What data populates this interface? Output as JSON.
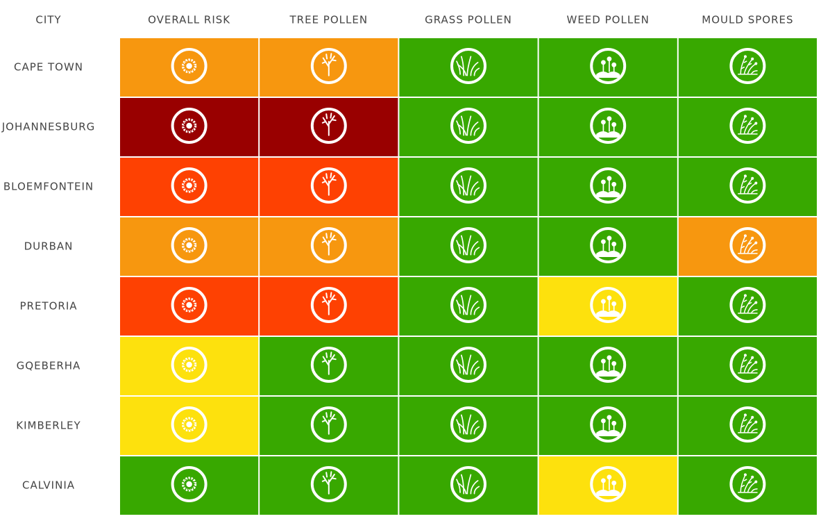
{
  "header": {
    "city": "CITY",
    "columns": [
      "OVERALL RISK",
      "TREE POLLEN",
      "GRASS POLLEN",
      "WEED POLLEN",
      "MOULD SPORES"
    ]
  },
  "rows": [
    {
      "city": "CAPE TOWN",
      "colors": [
        "#f7970f",
        "#f7970f",
        "#38a800",
        "#38a800",
        "#38a800"
      ]
    },
    {
      "city": "JOHANNESBURG",
      "colors": [
        "#990000",
        "#990000",
        "#38a800",
        "#38a800",
        "#38a800"
      ]
    },
    {
      "city": "BLOEMFONTEIN",
      "colors": [
        "#fe4102",
        "#fe4102",
        "#38a800",
        "#38a800",
        "#38a800"
      ]
    },
    {
      "city": "DURBAN",
      "colors": [
        "#f7970f",
        "#f7970f",
        "#38a800",
        "#38a800",
        "#f7970f"
      ]
    },
    {
      "city": "PRETORIA",
      "colors": [
        "#fe4102",
        "#fe4102",
        "#38a800",
        "#fde10d",
        "#38a800"
      ]
    },
    {
      "city": "GQEBERHA",
      "colors": [
        "#fde10d",
        "#38a800",
        "#38a800",
        "#38a800",
        "#38a800"
      ]
    },
    {
      "city": "KIMBERLEY",
      "colors": [
        "#fde10d",
        "#38a800",
        "#38a800",
        "#38a800",
        "#38a800"
      ]
    },
    {
      "city": "CALVINIA",
      "colors": [
        "#38a800",
        "#38a800",
        "#38a800",
        "#fde10d",
        "#38a800"
      ]
    }
  ]
}
